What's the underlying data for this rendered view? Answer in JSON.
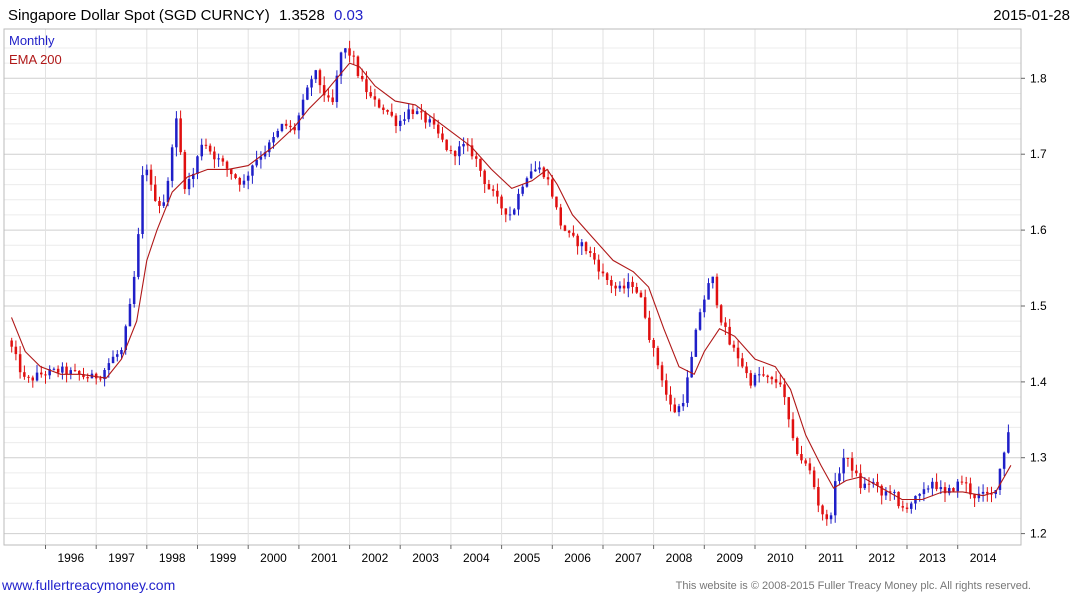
{
  "header": {
    "title": "Singapore Dollar Spot (SGD CURNCY)",
    "last_price": "1.3528",
    "change": "0.03",
    "date": "2015-01-28"
  },
  "legend": {
    "series_label": "Monthly",
    "ema_label": "EMA 200"
  },
  "footer": {
    "website": "www.fullertreacymoney.com",
    "copyright": "This website is © 2008-2015 Fuller Treacy Money plc. All rights reserved."
  },
  "colors": {
    "up": "#1f1fc8",
    "down": "#e01010",
    "ema": "#b01818",
    "grid": "#d8d8d8",
    "title_change": "#1f1fc8",
    "legend_series": "#1f1fc8",
    "legend_ema": "#b01818",
    "footer_link": "#2222cc"
  },
  "chart_data": {
    "type": "candlestick",
    "interval": "monthly",
    "xlim": [
      1995.3,
      2015.15
    ],
    "ylim": [
      1.185,
      1.865
    ],
    "y_ticks": [
      1.2,
      1.3,
      1.4,
      1.5,
      1.6,
      1.7,
      1.8
    ],
    "x_ticks": [
      {
        "label": "1996",
        "x": 1996.0
      },
      {
        "label": "1997",
        "x": 1997.0
      },
      {
        "label": "1998",
        "x": 1998.0
      },
      {
        "label": "1999",
        "x": 1999.0
      },
      {
        "label": "2000",
        "x": 2000.0
      },
      {
        "label": "2001",
        "x": 2001.0
      },
      {
        "label": "2002",
        "x": 2002.0
      },
      {
        "label": "2003",
        "x": 2003.0
      },
      {
        "label": "2004",
        "x": 2004.0
      },
      {
        "label": "2005",
        "x": 2005.0
      },
      {
        "label": "2006",
        "x": 2006.0
      },
      {
        "label": "2007",
        "x": 2007.0
      },
      {
        "label": "2008",
        "x": 2008.0
      },
      {
        "label": "2009",
        "x": 2009.0
      },
      {
        "label": "2010",
        "x": 2010.0
      },
      {
        "label": "2011",
        "x": 2011.0
      },
      {
        "label": "2012",
        "x": 2012.0
      },
      {
        "label": "2013",
        "x": 2013.0
      },
      {
        "label": "2014",
        "x": 2014.0
      }
    ],
    "grid": true,
    "candle_start": [
      1995,
      5
    ],
    "close_path": [
      [
        1995.33,
        1.445
      ],
      [
        1995.6,
        1.4
      ],
      [
        1995.9,
        1.41
      ],
      [
        1996.3,
        1.415
      ],
      [
        1996.6,
        1.41
      ],
      [
        1996.9,
        1.405
      ],
      [
        1997.1,
        1.41
      ],
      [
        1997.3,
        1.43
      ],
      [
        1997.5,
        1.44
      ],
      [
        1997.65,
        1.49
      ],
      [
        1997.8,
        1.56
      ],
      [
        1997.95,
        1.7
      ],
      [
        1998.1,
        1.65
      ],
      [
        1998.3,
        1.63
      ],
      [
        1998.45,
        1.67
      ],
      [
        1998.55,
        1.76
      ],
      [
        1998.75,
        1.66
      ],
      [
        1998.9,
        1.67
      ],
      [
        1999.1,
        1.72
      ],
      [
        1999.3,
        1.7
      ],
      [
        1999.6,
        1.68
      ],
      [
        1999.9,
        1.66
      ],
      [
        2000.1,
        1.69
      ],
      [
        2000.4,
        1.71
      ],
      [
        2000.7,
        1.74
      ],
      [
        2000.9,
        1.73
      ],
      [
        2001.1,
        1.77
      ],
      [
        2001.3,
        1.81
      ],
      [
        2001.5,
        1.78
      ],
      [
        2001.65,
        1.76
      ],
      [
        2001.85,
        1.84
      ],
      [
        2002.05,
        1.83
      ],
      [
        2002.2,
        1.8
      ],
      [
        2002.45,
        1.77
      ],
      [
        2002.7,
        1.76
      ],
      [
        2002.95,
        1.74
      ],
      [
        2003.2,
        1.76
      ],
      [
        2003.4,
        1.75
      ],
      [
        2003.6,
        1.74
      ],
      [
        2003.8,
        1.72
      ],
      [
        2004.0,
        1.7
      ],
      [
        2004.25,
        1.71
      ],
      [
        2004.45,
        1.7
      ],
      [
        2004.7,
        1.66
      ],
      [
        2005.0,
        1.63
      ],
      [
        2005.2,
        1.62
      ],
      [
        2005.4,
        1.66
      ],
      [
        2005.55,
        1.68
      ],
      [
        2005.8,
        1.68
      ],
      [
        2005.95,
        1.66
      ],
      [
        2006.15,
        1.61
      ],
      [
        2006.35,
        1.59
      ],
      [
        2006.6,
        1.58
      ],
      [
        2006.85,
        1.56
      ],
      [
        2007.0,
        1.54
      ],
      [
        2007.3,
        1.52
      ],
      [
        2007.6,
        1.53
      ],
      [
        2007.8,
        1.5
      ],
      [
        2007.95,
        1.45
      ],
      [
        2008.15,
        1.41
      ],
      [
        2008.3,
        1.37
      ],
      [
        2008.45,
        1.36
      ],
      [
        2008.6,
        1.38
      ],
      [
        2008.75,
        1.43
      ],
      [
        2008.9,
        1.49
      ],
      [
        2009.05,
        1.52
      ],
      [
        2009.15,
        1.54
      ],
      [
        2009.3,
        1.49
      ],
      [
        2009.5,
        1.45
      ],
      [
        2009.7,
        1.43
      ],
      [
        2009.9,
        1.4
      ],
      [
        2010.1,
        1.41
      ],
      [
        2010.3,
        1.4
      ],
      [
        2010.5,
        1.4
      ],
      [
        2010.6,
        1.37
      ],
      [
        2010.75,
        1.32
      ],
      [
        2010.9,
        1.3
      ],
      [
        2011.1,
        1.28
      ],
      [
        2011.25,
        1.24
      ],
      [
        2011.45,
        1.21
      ],
      [
        2011.6,
        1.27
      ],
      [
        2011.75,
        1.3
      ],
      [
        2011.9,
        1.29
      ],
      [
        2012.1,
        1.26
      ],
      [
        2012.3,
        1.27
      ],
      [
        2012.5,
        1.25
      ],
      [
        2012.7,
        1.26
      ],
      [
        2012.85,
        1.23
      ],
      [
        2013.05,
        1.24
      ],
      [
        2013.3,
        1.25
      ],
      [
        2013.5,
        1.27
      ],
      [
        2013.75,
        1.25
      ],
      [
        2013.9,
        1.26
      ],
      [
        2014.1,
        1.27
      ],
      [
        2014.3,
        1.25
      ],
      [
        2014.55,
        1.25
      ],
      [
        2014.7,
        1.25
      ],
      [
        2014.85,
        1.29
      ],
      [
        2014.95,
        1.32
      ],
      [
        2015.05,
        1.3528
      ]
    ],
    "ema_path": [
      [
        1995.33,
        1.485
      ],
      [
        1995.6,
        1.44
      ],
      [
        1995.9,
        1.42
      ],
      [
        1996.3,
        1.41
      ],
      [
        1996.7,
        1.41
      ],
      [
        1997.2,
        1.405
      ],
      [
        1997.5,
        1.43
      ],
      [
        1997.8,
        1.48
      ],
      [
        1998.0,
        1.56
      ],
      [
        1998.2,
        1.6
      ],
      [
        1998.5,
        1.65
      ],
      [
        1998.8,
        1.67
      ],
      [
        1999.2,
        1.68
      ],
      [
        1999.6,
        1.68
      ],
      [
        2000.0,
        1.685
      ],
      [
        2000.5,
        1.71
      ],
      [
        2000.9,
        1.735
      ],
      [
        2001.2,
        1.76
      ],
      [
        2001.5,
        1.78
      ],
      [
        2001.75,
        1.8
      ],
      [
        2002.0,
        1.82
      ],
      [
        2002.2,
        1.815
      ],
      [
        2002.5,
        1.79
      ],
      [
        2002.9,
        1.77
      ],
      [
        2003.3,
        1.765
      ],
      [
        2003.7,
        1.745
      ],
      [
        2004.0,
        1.73
      ],
      [
        2004.4,
        1.71
      ],
      [
        2004.8,
        1.68
      ],
      [
        2005.2,
        1.655
      ],
      [
        2005.6,
        1.665
      ],
      [
        2005.9,
        1.68
      ],
      [
        2006.1,
        1.66
      ],
      [
        2006.4,
        1.62
      ],
      [
        2006.8,
        1.59
      ],
      [
        2007.2,
        1.56
      ],
      [
        2007.6,
        1.545
      ],
      [
        2007.9,
        1.525
      ],
      [
        2008.2,
        1.47
      ],
      [
        2008.5,
        1.42
      ],
      [
        2008.8,
        1.41
      ],
      [
        2009.0,
        1.44
      ],
      [
        2009.3,
        1.47
      ],
      [
        2009.6,
        1.46
      ],
      [
        2010.0,
        1.43
      ],
      [
        2010.4,
        1.42
      ],
      [
        2010.7,
        1.39
      ],
      [
        2011.0,
        1.33
      ],
      [
        2011.3,
        1.29
      ],
      [
        2011.55,
        1.26
      ],
      [
        2011.8,
        1.27
      ],
      [
        2012.1,
        1.275
      ],
      [
        2012.5,
        1.26
      ],
      [
        2012.9,
        1.245
      ],
      [
        2013.3,
        1.245
      ],
      [
        2013.7,
        1.255
      ],
      [
        2014.1,
        1.255
      ],
      [
        2014.5,
        1.25
      ],
      [
        2014.75,
        1.255
      ],
      [
        2015.05,
        1.29
      ]
    ]
  }
}
